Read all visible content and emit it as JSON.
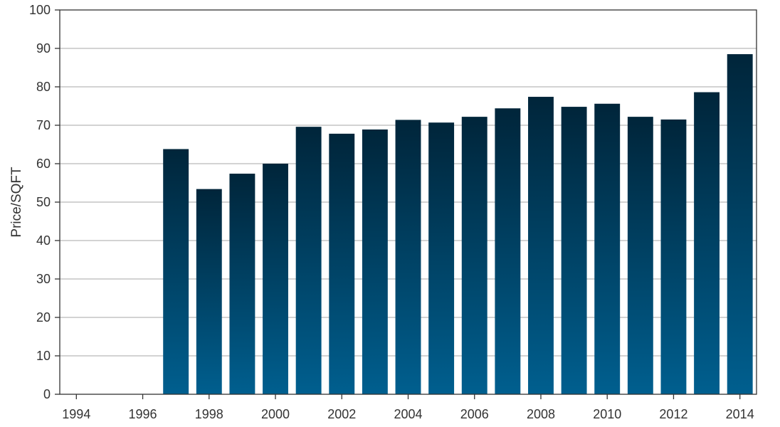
{
  "chart_data": {
    "type": "bar",
    "title": "",
    "xlabel": "",
    "ylabel": "Price/SQFT",
    "ylim": [
      0,
      100
    ],
    "xlim": [
      1993.5,
      2014.5
    ],
    "yticks": [
      0,
      10,
      20,
      30,
      40,
      50,
      60,
      70,
      80,
      90,
      100
    ],
    "xticks": [
      1994,
      1996,
      1998,
      2000,
      2002,
      2004,
      2006,
      2008,
      2010,
      2012,
      2014
    ],
    "grid": "horizontal",
    "legend": "none",
    "bar_color_top": "#00253a",
    "bar_color_bottom": "#005f8f",
    "series": [
      {
        "x": [
          1997,
          1998,
          1999,
          2000,
          2001,
          2002,
          2003,
          2004,
          2005,
          2006,
          2007,
          2008,
          2009,
          2010,
          2011,
          2012,
          2013,
          2014
        ],
        "values": [
          63.8,
          53.4,
          57.4,
          60.0,
          69.6,
          67.8,
          68.9,
          71.4,
          70.7,
          72.2,
          74.4,
          77.4,
          74.8,
          75.6,
          72.2,
          71.5,
          78.6,
          88.5
        ]
      }
    ]
  }
}
